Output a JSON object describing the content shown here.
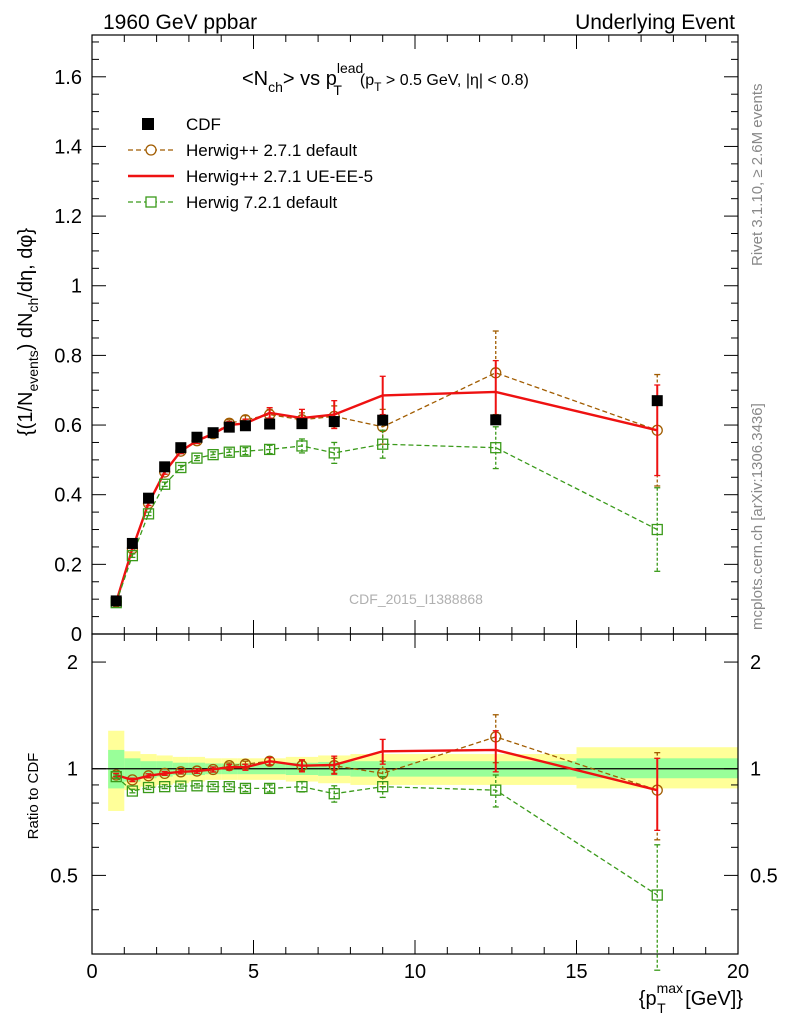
{
  "header": {
    "left": "1960 GeV ppbar",
    "right": "Underlying Event"
  },
  "title": {
    "base": "<N",
    "sub1": "ch",
    "mid": "> vs p",
    "sup": "lead",
    "sub2": "T",
    "cut": "(p",
    "cut_sub": "T",
    "cut_rest": " > 0.5 GeV, |η| < 0.8)"
  },
  "side_labels": {
    "rivet": "Rivet 3.1.10, ≥ 2.6M events",
    "mcplots": "mcplots.cern.ch [arXiv:1306.3436]"
  },
  "watermark": "CDF_2015_I1388868",
  "ylabel_main": "{(1/N_events) dN_ch/dη, dφ}",
  "ylabel_ratio": "Ratio to CDF",
  "xlabel": "{p_T^max [GeV]}",
  "colors": {
    "cdf": "#000000",
    "herwig_default": "#a15c00",
    "herwig_ue": "#ee1111",
    "herwig72": "#3a9a1a",
    "band_inner": "#99ff99",
    "band_outer": "#ffff99"
  },
  "chart_data": [
    {
      "type": "scatter",
      "panel": "main",
      "xlim": [
        0,
        20
      ],
      "ylim": [
        0,
        1.72
      ],
      "x_ticks": [
        0,
        5,
        10,
        15,
        20
      ],
      "y_ticks": [
        0,
        0.2,
        0.4,
        0.6,
        0.8,
        1,
        1.2,
        1.4,
        1.6
      ],
      "y_tick_labels": [
        "0",
        "0.2",
        "0.4",
        "0.6",
        "0.8",
        "1",
        "1.2",
        "1.4",
        "1.6"
      ],
      "legend_position": "top-left",
      "series": [
        {
          "name": "CDF",
          "style": "square-filled",
          "x": [
            0.75,
            1.25,
            1.75,
            2.25,
            2.75,
            3.25,
            3.75,
            4.25,
            4.75,
            5.5,
            6.5,
            7.5,
            9.0,
            12.5,
            17.5
          ],
          "y": [
            0.095,
            0.26,
            0.39,
            0.48,
            0.535,
            0.565,
            0.578,
            0.594,
            0.598,
            0.603,
            0.604,
            0.61,
            0.614,
            0.615,
            0.67
          ]
        },
        {
          "name": "Herwig++ 2.7.1 default",
          "style": "circle-open-dashed",
          "x": [
            0.75,
            1.25,
            1.75,
            2.25,
            2.75,
            3.25,
            3.75,
            4.25,
            4.75,
            5.5,
            6.5,
            7.5,
            9.0,
            12.5,
            17.5
          ],
          "y": [
            0.092,
            0.245,
            0.375,
            0.465,
            0.525,
            0.555,
            0.575,
            0.605,
            0.615,
            0.63,
            0.615,
            0.625,
            0.595,
            0.75,
            0.585
          ],
          "err": [
            0.005,
            0.005,
            0.006,
            0.006,
            0.007,
            0.008,
            0.009,
            0.01,
            0.012,
            0.015,
            0.02,
            0.03,
            0.05,
            0.12,
            0.16
          ]
        },
        {
          "name": "Herwig++ 2.7.1 UE-EE-5",
          "style": "line-solid",
          "x": [
            0.75,
            1.25,
            1.75,
            2.25,
            2.75,
            3.25,
            3.75,
            4.25,
            4.75,
            5.5,
            6.5,
            7.5,
            9.0,
            12.5,
            17.5
          ],
          "y": [
            0.092,
            0.245,
            0.375,
            0.465,
            0.525,
            0.555,
            0.575,
            0.6,
            0.605,
            0.635,
            0.62,
            0.63,
            0.685,
            0.695,
            0.585
          ],
          "err": [
            0.005,
            0.005,
            0.006,
            0.006,
            0.007,
            0.008,
            0.009,
            0.01,
            0.012,
            0.015,
            0.025,
            0.04,
            0.055,
            0.09,
            0.13
          ]
        },
        {
          "name": "Herwig 7.2.1 default",
          "style": "square-open-dashed",
          "x": [
            0.75,
            1.25,
            1.75,
            2.25,
            2.75,
            3.25,
            3.75,
            4.25,
            4.75,
            5.5,
            6.5,
            7.5,
            9.0,
            12.5,
            17.5
          ],
          "y": [
            0.09,
            0.225,
            0.345,
            0.43,
            0.478,
            0.505,
            0.515,
            0.522,
            0.525,
            0.53,
            0.54,
            0.52,
            0.545,
            0.535,
            0.3
          ],
          "err": [
            0.004,
            0.005,
            0.005,
            0.006,
            0.006,
            0.007,
            0.008,
            0.009,
            0.01,
            0.012,
            0.02,
            0.03,
            0.04,
            0.06,
            0.12
          ]
        }
      ]
    },
    {
      "type": "scatter",
      "panel": "ratio",
      "xlim": [
        0,
        20
      ],
      "ylim": [
        0.3,
        2.4
      ],
      "log_y": true,
      "x_ticks": [
        0,
        5,
        10,
        15,
        20
      ],
      "x_tick_labels": [
        "0",
        "5",
        "10",
        "15",
        "20"
      ],
      "y_ticks": [
        0.5,
        1,
        2
      ],
      "y_tick_labels": [
        "0.5",
        "1",
        "2"
      ],
      "bands": {
        "x_edges": [
          0.5,
          1.0,
          1.5,
          2.0,
          2.5,
          3.0,
          3.5,
          4.0,
          4.5,
          5.0,
          6.0,
          7.0,
          8.0,
          10.0,
          15.0,
          20.0
        ],
        "inner_lo": [
          0.88,
          0.92,
          0.94,
          0.95,
          0.96,
          0.96,
          0.965,
          0.965,
          0.965,
          0.965,
          0.96,
          0.955,
          0.95,
          0.95,
          0.94
        ],
        "inner_hi": [
          1.13,
          1.07,
          1.05,
          1.05,
          1.04,
          1.04,
          1.035,
          1.035,
          1.035,
          1.035,
          1.04,
          1.045,
          1.05,
          1.05,
          1.07
        ],
        "outer_lo": [
          0.76,
          0.87,
          0.89,
          0.9,
          0.91,
          0.92,
          0.93,
          0.93,
          0.93,
          0.93,
          0.92,
          0.91,
          0.9,
          0.9,
          0.88
        ],
        "outer_hi": [
          1.28,
          1.12,
          1.1,
          1.09,
          1.08,
          1.08,
          1.07,
          1.07,
          1.07,
          1.07,
          1.08,
          1.09,
          1.1,
          1.1,
          1.15
        ]
      },
      "series": [
        {
          "name": "Herwig++ 2.7.1 default",
          "x": [
            0.75,
            1.25,
            1.75,
            2.25,
            2.75,
            3.25,
            3.75,
            4.25,
            4.75,
            5.5,
            6.5,
            7.5,
            9.0,
            12.5,
            17.5
          ],
          "y": [
            0.96,
            0.93,
            0.955,
            0.97,
            0.98,
            0.985,
            0.995,
            1.02,
            1.03,
            1.05,
            1.02,
            1.02,
            0.97,
            1.23,
            0.87
          ],
          "err": [
            0.01,
            0.01,
            0.012,
            0.012,
            0.013,
            0.014,
            0.016,
            0.018,
            0.02,
            0.025,
            0.035,
            0.05,
            0.08,
            0.19,
            0.24
          ]
        },
        {
          "name": "Herwig++ 2.7.1 UE-EE-5",
          "x": [
            0.75,
            1.25,
            1.75,
            2.25,
            2.75,
            3.25,
            3.75,
            4.25,
            4.75,
            5.5,
            6.5,
            7.5,
            9.0,
            12.5,
            17.5
          ],
          "y": [
            0.96,
            0.93,
            0.955,
            0.97,
            0.98,
            0.985,
            0.995,
            1.01,
            1.01,
            1.05,
            1.02,
            1.025,
            1.12,
            1.13,
            0.87
          ],
          "err": [
            0.01,
            0.01,
            0.012,
            0.012,
            0.013,
            0.014,
            0.016,
            0.018,
            0.02,
            0.025,
            0.04,
            0.06,
            0.09,
            0.15,
            0.2
          ]
        },
        {
          "name": "Herwig 7.2.1 default",
          "x": [
            0.75,
            1.25,
            1.75,
            2.25,
            2.75,
            3.25,
            3.75,
            4.25,
            4.75,
            5.5,
            6.5,
            7.5,
            9.0,
            12.5,
            17.5
          ],
          "y": [
            0.95,
            0.865,
            0.885,
            0.89,
            0.893,
            0.895,
            0.89,
            0.89,
            0.88,
            0.88,
            0.89,
            0.85,
            0.89,
            0.87,
            0.44
          ],
          "err": [
            0.01,
            0.01,
            0.011,
            0.011,
            0.012,
            0.012,
            0.014,
            0.016,
            0.018,
            0.02,
            0.03,
            0.045,
            0.06,
            0.09,
            0.17
          ]
        }
      ]
    }
  ]
}
